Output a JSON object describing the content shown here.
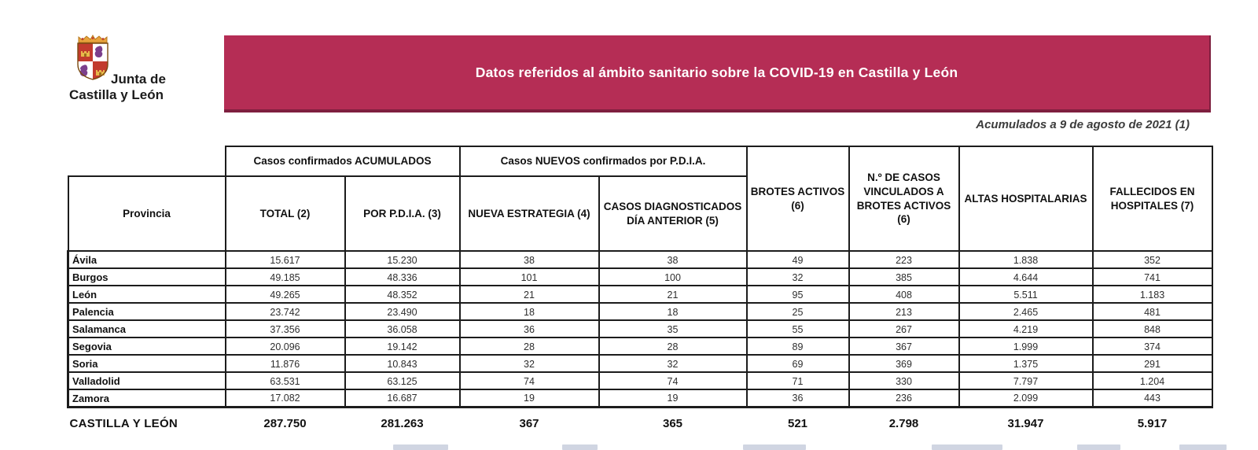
{
  "logo": {
    "line1": "Junta de",
    "line2": "Castilla y León"
  },
  "banner": {
    "title": "Datos referidos al ámbito sanitario sobre la COVID-19 en Castilla y León",
    "bg_color": "#B52D55"
  },
  "date_note": "Acumulados a 9 de agosto de 2021 (1)",
  "table": {
    "group_headers": {
      "acumulados": "Casos confirmados ACUMULADOS",
      "nuevos": "Casos NUEVOS confirmados por P.D.I.A."
    },
    "headers": {
      "provincia": "Provincia",
      "total": "TOTAL (2)",
      "por_pdia": "POR P.D.I.A. (3)",
      "nueva_estrategia": "NUEVA ESTRATEGIA (4)",
      "casos_diagnosticados": "CASOS DIAGNOSTICADOS DÍA ANTERIOR (5)",
      "brotes_activos": "BROTES ACTIVOS (6)",
      "vinculados_brotes": "N.º DE CASOS VINCULADOS A BROTES ACTIVOS (6)",
      "altas": "ALTAS HOSPITALARIAS",
      "fallecidos": "FALLECIDOS EN HOSPITALES (7)"
    },
    "rows": [
      {
        "provincia": "Ávila",
        "values": [
          "15.617",
          "15.230",
          "38",
          "38",
          "49",
          "223",
          "1.838",
          "352"
        ]
      },
      {
        "provincia": "Burgos",
        "values": [
          "49.185",
          "48.336",
          "101",
          "100",
          "32",
          "385",
          "4.644",
          "741"
        ]
      },
      {
        "provincia": "León",
        "values": [
          "49.265",
          "48.352",
          "21",
          "21",
          "95",
          "408",
          "5.511",
          "1.183"
        ]
      },
      {
        "provincia": "Palencia",
        "values": [
          "23.742",
          "23.490",
          "18",
          "18",
          "25",
          "213",
          "2.465",
          "481"
        ]
      },
      {
        "provincia": "Salamanca",
        "values": [
          "37.356",
          "36.058",
          "36",
          "35",
          "55",
          "267",
          "4.219",
          "848"
        ]
      },
      {
        "provincia": "Segovia",
        "values": [
          "20.096",
          "19.142",
          "28",
          "28",
          "89",
          "367",
          "1.999",
          "374"
        ]
      },
      {
        "provincia": "Soria",
        "values": [
          "11.876",
          "10.843",
          "32",
          "32",
          "69",
          "369",
          "1.375",
          "291"
        ]
      },
      {
        "provincia": "Valladolid",
        "values": [
          "63.531",
          "63.125",
          "74",
          "74",
          "71",
          "330",
          "7.797",
          "1.204"
        ]
      },
      {
        "provincia": "Zamora",
        "values": [
          "17.082",
          "16.687",
          "19",
          "19",
          "36",
          "236",
          "2.099",
          "443"
        ]
      }
    ],
    "total_row": {
      "label": "CASTILLA Y LEÓN",
      "values": [
        "287.750",
        "281.263",
        "367",
        "365",
        "521",
        "2.798",
        "31.947",
        "5.917"
      ]
    }
  }
}
